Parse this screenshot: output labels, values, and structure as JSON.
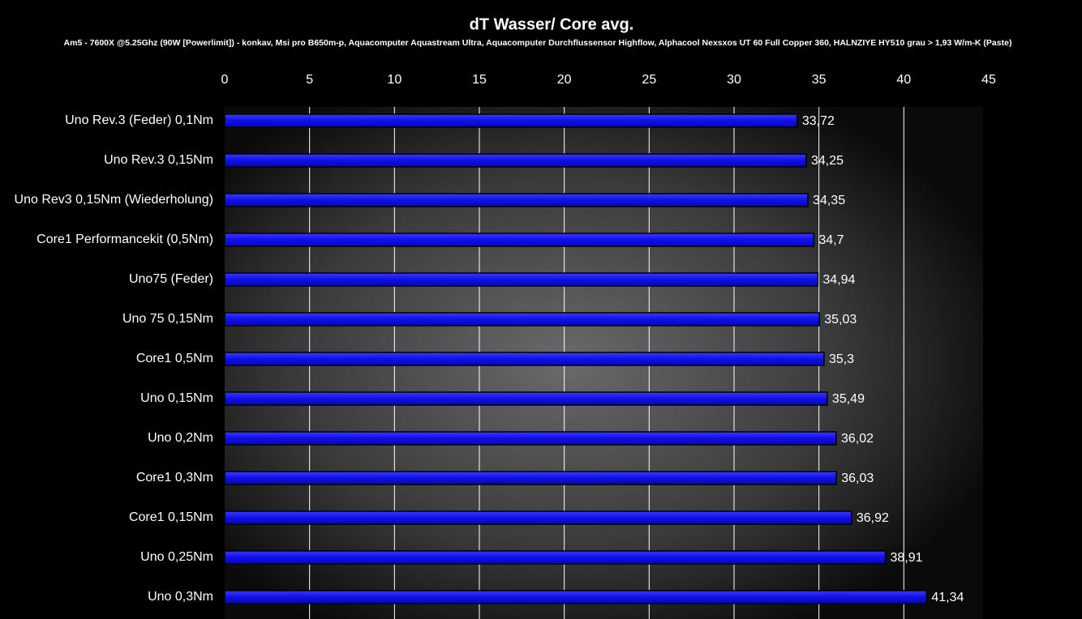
{
  "chart_data": {
    "type": "bar",
    "title": "dT Wasser/ Core avg.",
    "subtitle": "Am5 - 7600X @5.25Ghz (90W [Powerlimit]) - konkav, Msi pro B650m-p, Aquacomputer Aquastream Ultra, Aquacomputer Durchflussensor Highflow, Alphacool Nexsxos UT 60 Full Copper 360, HALNZIYE HY510 grau > 1,93 W/m-K (Paste)",
    "categories": [
      "Uno Rev.3 (Feder) 0,1Nm",
      "Uno Rev.3 0,15Nm",
      "Uno Rev3 0,15Nm (Wiederholung)",
      "Core1 Performancekit (0,5Nm)",
      "Uno75 (Feder)",
      "Uno 75 0,15Nm",
      "Core1 0,5Nm",
      "Uno 0,15Nm",
      "Uno 0,2Nm",
      "Core1 0,3Nm",
      "Core1 0,15Nm",
      "Uno 0,25Nm",
      "Uno 0,3Nm"
    ],
    "values": [
      33.72,
      34.25,
      34.35,
      34.7,
      34.94,
      35.03,
      35.3,
      35.49,
      36.02,
      36.03,
      36.92,
      38.91,
      41.34
    ],
    "value_labels": [
      "33,72",
      "34,25",
      "34,35",
      "34,7",
      "34,94",
      "35,03",
      "35,3",
      "35,49",
      "36,02",
      "36,03",
      "36,92",
      "38,91",
      "41,34"
    ],
    "color": "#1010e8",
    "xlim": [
      0,
      45
    ],
    "xticks": [
      0,
      5,
      10,
      15,
      20,
      25,
      30,
      35,
      40,
      45
    ],
    "grid": true
  }
}
